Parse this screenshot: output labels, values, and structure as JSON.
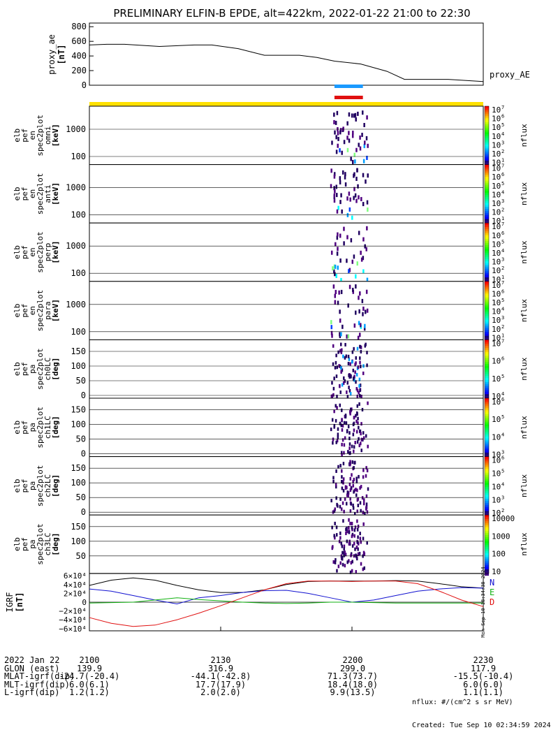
{
  "title": "PRELIMINARY ELFIN-B EPDE, alt=422km, 2022-01-22 21:00 to 22:30",
  "colors": {
    "blue_bar": "#1a9aff",
    "red_bar": "#e01010",
    "yellow_bar": "#ffe000",
    "N": "#1010d0",
    "E": "#10b010",
    "D": "#e01010"
  },
  "chart_data": {
    "type": "multi-panel spectrogram",
    "proxy_ae": {
      "ylabel": "proxy_ae",
      "units": "[nT]",
      "legend": "proxy_AE",
      "yticks": [
        "800",
        "600",
        "400",
        "200",
        "0"
      ],
      "ylim": [
        0,
        850
      ],
      "t": [
        0,
        4,
        8,
        16,
        24,
        28,
        34,
        40,
        44,
        48,
        52,
        56,
        62,
        68,
        72,
        76,
        82,
        90
      ],
      "values": [
        550,
        560,
        560,
        530,
        550,
        550,
        500,
        410,
        410,
        410,
        380,
        330,
        290,
        190,
        80,
        80,
        80,
        50
      ]
    },
    "spectrograms": [
      {
        "lines": [
          "elb",
          "pef",
          "en",
          "spec2plot",
          "omni",
          "[keV]"
        ],
        "yticks": [
          "1000",
          "100"
        ],
        "cbar": "nflux",
        "cticks": [
          "10",
          "10",
          "10",
          "10",
          "10",
          "10",
          "10"
        ],
        "cexp": [
          "7",
          "6",
          "5",
          "4",
          "3",
          "2",
          "1"
        ],
        "ctype": "energy"
      },
      {
        "lines": [
          "elb",
          "pef",
          "en",
          "spec2plot",
          "anti",
          "[keV]"
        ],
        "yticks": [
          "1000",
          "100"
        ],
        "cbar": "nflux",
        "cticks": [
          "10",
          "10",
          "10",
          "10",
          "10",
          "10",
          "10"
        ],
        "cexp": [
          "7",
          "6",
          "5",
          "4",
          "3",
          "2",
          "1"
        ],
        "ctype": "energy"
      },
      {
        "lines": [
          "elb",
          "pef",
          "en",
          "spec2plot",
          "perp",
          "[keV]"
        ],
        "yticks": [
          "1000",
          "100"
        ],
        "cbar": "nflux",
        "cticks": [
          "10",
          "10",
          "10",
          "10",
          "10",
          "10",
          "10"
        ],
        "cexp": [
          "7",
          "6",
          "5",
          "4",
          "3",
          "2",
          "1"
        ],
        "ctype": "energy"
      },
      {
        "lines": [
          "elb",
          "pef",
          "en",
          "spec2plot",
          "para",
          "[keV]"
        ],
        "yticks": [
          "1000",
          "100"
        ],
        "cbar": "nflux",
        "cticks": [
          "10",
          "10",
          "10",
          "10",
          "10",
          "10",
          "10"
        ],
        "cexp": [
          "7",
          "6",
          "5",
          "4",
          "3",
          "2",
          "1"
        ],
        "ctype": "energy"
      },
      {
        "lines": [
          "elb",
          "pef",
          "pa",
          "spec2plot",
          "ch0LC",
          "[deg]"
        ],
        "yticks": [
          "150",
          "100",
          "50",
          "0"
        ],
        "cbar": "nflux",
        "cticks": [
          "10",
          "10",
          "10",
          "10"
        ],
        "cexp": [
          "7",
          "6",
          "5",
          "4"
        ],
        "ctype": "pa"
      },
      {
        "lines": [
          "elb",
          "pef",
          "pa",
          "spec2plot",
          "ch1LC",
          "[deg]"
        ],
        "yticks": [
          "150",
          "100",
          "50",
          "0"
        ],
        "cbar": "nflux",
        "cticks": [
          "10",
          "10",
          "10",
          "10"
        ],
        "cexp": [
          "6",
          "5",
          "4",
          "3"
        ],
        "ctype": "pa"
      },
      {
        "lines": [
          "elb",
          "pef",
          "pa",
          "spec2plot",
          "ch2LC",
          "[deg]"
        ],
        "yticks": [
          "150",
          "100",
          "50",
          "0"
        ],
        "cbar": "nflux",
        "cticks": [
          "10",
          "10",
          "10",
          "10",
          "10"
        ],
        "cexp": [
          "6",
          "5",
          "4",
          "3",
          "2"
        ],
        "ctype": "pa"
      },
      {
        "lines": [
          "elb",
          "pef",
          "pa",
          "spec2plot",
          "ch3LC",
          "[deg]"
        ],
        "yticks": [
          "150",
          "100",
          "50"
        ],
        "cbar": "nflux",
        "cticks": [
          "10000",
          "1000",
          "100",
          "10"
        ],
        "cexp": [
          "",
          "",
          "",
          ""
        ],
        "ctype": "pa"
      }
    ],
    "igrf": {
      "ylabel": "IGRF",
      "units": "[nT]",
      "yticks": [
        "6×10⁴",
        "4×10⁴",
        "2×10⁴",
        "0",
        "−2×10⁴",
        "−4×10⁴",
        "−6×10⁴"
      ],
      "ylim": [
        -65000,
        65000
      ],
      "legend": [
        "N",
        "E",
        "D"
      ],
      "side_text": "Mon Sep 10 18:34:38 2024",
      "t": [
        0,
        5,
        10,
        15,
        20,
        25,
        30,
        35,
        40,
        45,
        50,
        55,
        60,
        65,
        70,
        75,
        80,
        85,
        90
      ],
      "total": [
        38000,
        50000,
        55000,
        50000,
        38000,
        28000,
        22000,
        22000,
        28000,
        40000,
        47000,
        48000,
        48000,
        48000,
        49000,
        48000,
        42000,
        35000,
        32000
      ],
      "N": [
        30000,
        25000,
        15000,
        5000,
        -4000,
        10000,
        15000,
        22000,
        26000,
        27000,
        20000,
        10000,
        0,
        5000,
        15000,
        25000,
        30000,
        33000,
        32000
      ],
      "E": [
        -2000,
        -1000,
        0,
        5000,
        10000,
        6000,
        3000,
        0,
        -2000,
        -3000,
        -2000,
        0,
        0,
        -1000,
        -2000,
        -2000,
        -2000,
        -2000,
        -2000
      ],
      "D": [
        -35000,
        -48000,
        -55000,
        -52000,
        -40000,
        -25000,
        -8000,
        10000,
        28000,
        42000,
        48000,
        48000,
        47000,
        48000,
        48000,
        42000,
        25000,
        5000,
        -10000
      ]
    },
    "xticks": [
      "2100",
      "2130",
      "2200",
      "2230"
    ],
    "xtick_t": [
      0,
      30,
      60,
      90
    ]
  },
  "footer": {
    "rows": [
      {
        "label": "2022 Jan 22",
        "v": [
          "2100",
          "2130",
          "2200",
          "2230"
        ]
      },
      {
        "label": "GLON (east)",
        "v": [
          "139.9",
          "316.9",
          "299.0",
          "117.9"
        ]
      },
      {
        "label": "MLAT-igrf(dip)",
        "v": [
          "-24.7(-20.4)",
          "-44.1(-42.8)",
          "71.3(73.7)",
          "-15.5(-10.4)"
        ]
      },
      {
        "label": "MLT-igrf(dip)",
        "v": [
          "6.0(6.1)",
          "17.7(17.9)",
          "18.4(18.0)",
          "6.0(6.0)"
        ]
      },
      {
        "label": "L-igrf(dip)",
        "v": [
          "1.2(1.2)",
          "2.0(2.0)",
          "9.9(13.5)",
          "1.1(1.1)"
        ]
      }
    ],
    "units_note": "nflux: #/(cm^2 s sr MeV)",
    "created": "Created: Tue Sep 10 02:34:59 2024"
  }
}
